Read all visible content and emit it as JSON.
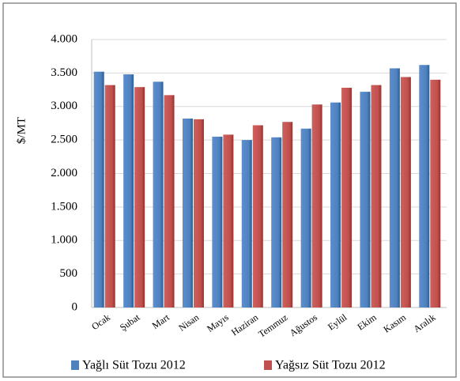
{
  "chart_data": {
    "type": "bar",
    "ylabel": "$/MT",
    "categories": [
      "Ocak",
      "Şubat",
      "Mart",
      "Nisan",
      "Mayıs",
      "Haziran",
      "Temmuz",
      "Ağustos",
      "Eylül",
      "Ekim",
      "Kasım",
      "Aralık"
    ],
    "series": [
      {
        "name": "Yağlı Süt Tozu 2012",
        "color": "#4f81bd",
        "values": [
          3520,
          3480,
          3370,
          2820,
          2550,
          2500,
          2540,
          2670,
          3060,
          3220,
          3570,
          3620
        ]
      },
      {
        "name": "Yağsız Süt Tozu 2012",
        "color": "#c0504d",
        "values": [
          3320,
          3290,
          3170,
          2810,
          2580,
          2720,
          2770,
          3030,
          3280,
          3320,
          3440,
          3400
        ]
      }
    ],
    "ylim": [
      0,
      4000
    ],
    "yticks": [
      0,
      500,
      {
        "value": 1000,
        "label": "1.000"
      },
      {
        "value": 1500,
        "label": "1.500"
      },
      {
        "value": 2000,
        "label": "2.000"
      },
      {
        "value": 2500,
        "label": "2.500"
      },
      {
        "value": 3000,
        "label": "3.000"
      },
      {
        "value": 3500,
        "label": "3.500"
      },
      {
        "value": 4000,
        "label": "4.000"
      }
    ],
    "grid": true,
    "legend": "bottom"
  }
}
